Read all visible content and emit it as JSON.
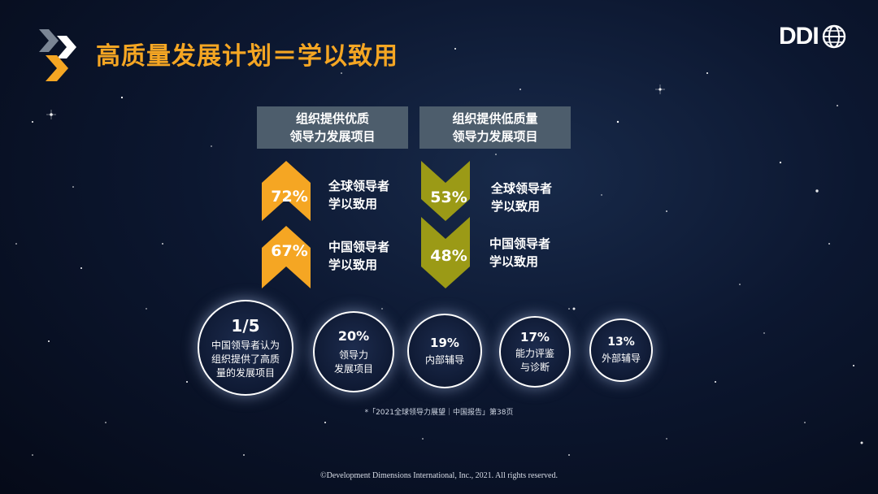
{
  "slide": {
    "title": "高质量发展计划＝学以致用",
    "brand": "DDI",
    "colors": {
      "accent": "#f5a623",
      "olive": "#9b9a16",
      "header_bg": "#4d5d6c"
    }
  },
  "columns": [
    {
      "header": [
        "组织提供优质",
        "领导力发展项目"
      ],
      "items": [
        {
          "pct": "72%",
          "label": [
            "全球领导者",
            "学以致用"
          ]
        },
        {
          "pct": "67%",
          "label": [
            "中国领导者",
            "学以致用"
          ]
        }
      ]
    },
    {
      "header": [
        "组织提供低质量",
        "领导力发展项目"
      ],
      "items": [
        {
          "pct": "53%",
          "label": [
            "全球领导者",
            "学以致用"
          ]
        },
        {
          "pct": "48%",
          "label": [
            "中国领导者",
            "学以致用"
          ]
        }
      ]
    }
  ],
  "circles": [
    {
      "value": "1/5",
      "lines": [
        "中国领导者认为",
        "组织提供了高质",
        "量的发展项目"
      ]
    },
    {
      "value": "20%",
      "lines": [
        "领导力",
        "发展项目"
      ]
    },
    {
      "value": "19%",
      "lines": [
        "内部辅导"
      ]
    },
    {
      "value": "17%",
      "lines": [
        "能力评鉴",
        "与诊断"
      ]
    },
    {
      "value": "13%",
      "lines": [
        "外部辅导"
      ]
    }
  ],
  "footnote": "*「2021全球领导力展望｜中国报告」第38页",
  "copyright": "©Development Dimensions International, Inc., 2021. All rights reserved."
}
